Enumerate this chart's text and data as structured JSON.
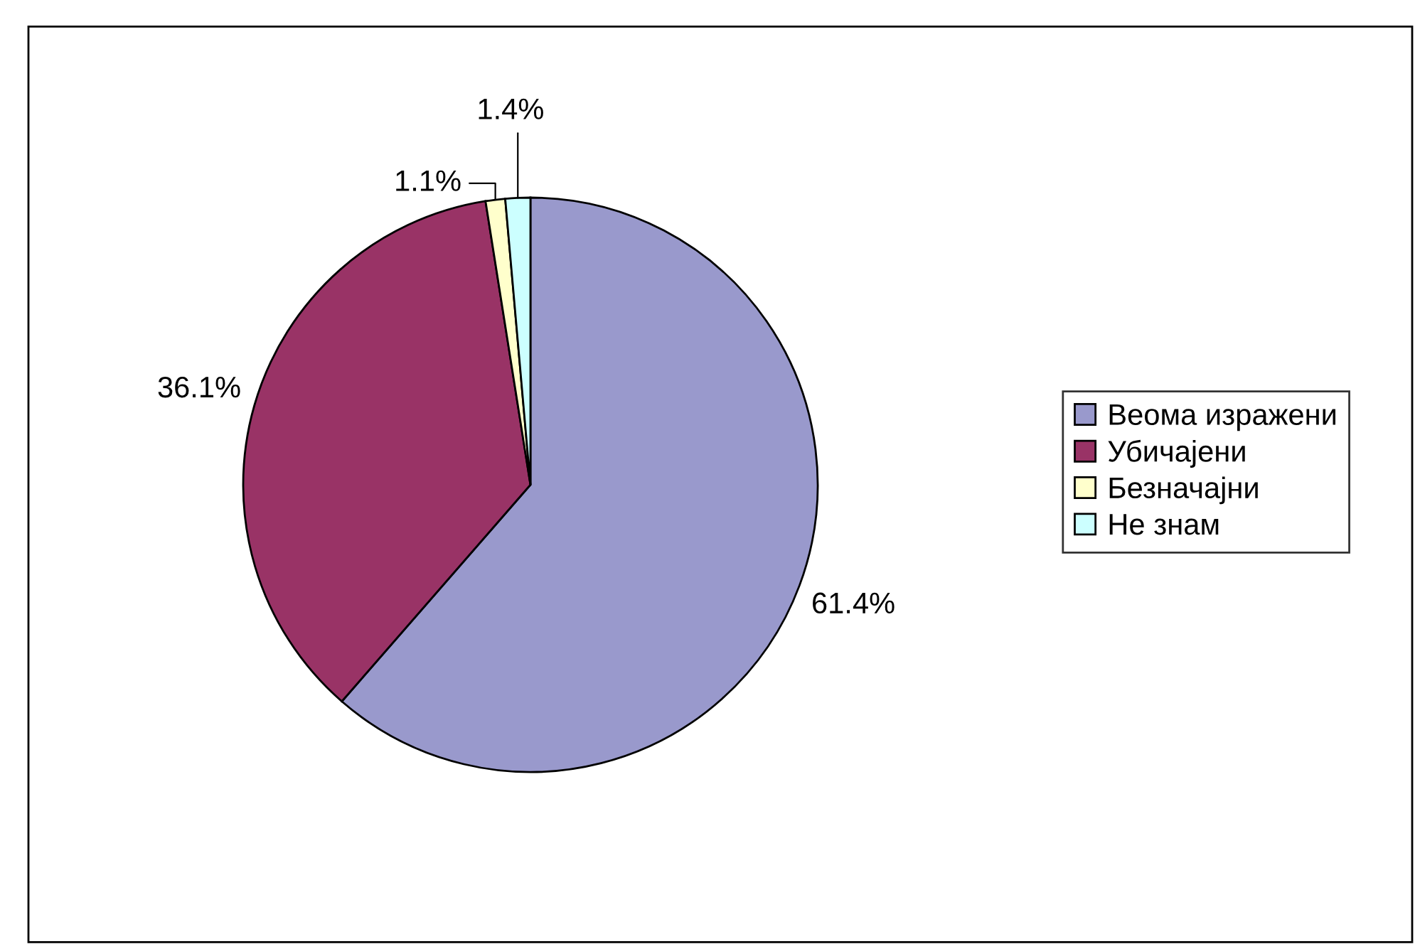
{
  "chart_data": {
    "type": "pie",
    "categories": [
      "Веома изражени",
      "Убичајени",
      "Безначајни",
      "Не знам"
    ],
    "values": [
      61.4,
      36.1,
      1.1,
      1.4
    ],
    "value_labels": [
      "61.4%",
      "36.1%",
      "1.1%",
      "1.4%"
    ],
    "colors": [
      "#9999cc",
      "#993366",
      "#ffffcc",
      "#ccffff"
    ],
    "legend": "right"
  }
}
